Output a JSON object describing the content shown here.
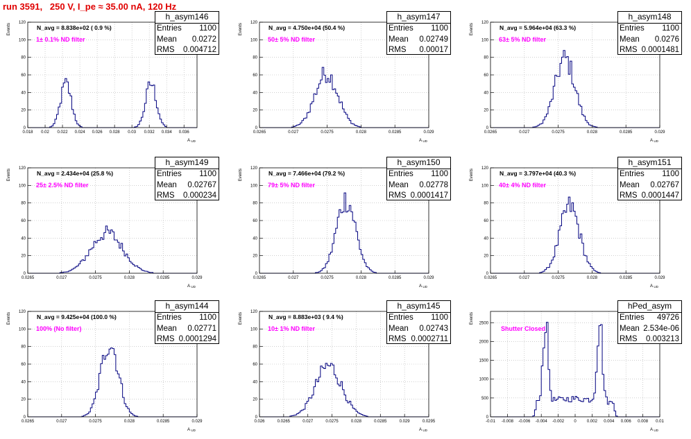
{
  "canvas_title": "run 3591,   250 V, I_pe ≈ 35.00 nA, 120 Hz",
  "colors": {
    "title": "#e00000",
    "histogram": "#00007f",
    "annotation": "#ff00ff",
    "grid": "#b0b0b0"
  },
  "chart_data": [
    {
      "type": "bar",
      "hist_name": "h_asym146",
      "navg": "N_avg = 8.838e+02 ( 0.9 %)",
      "filter": "1± 0.1% ND filter",
      "stats": {
        "entries_label": "Entries",
        "entries": "1100",
        "mean_label": "Mean",
        "mean": "0.0272",
        "rms_label": "RMS",
        "rms": "0.004712"
      },
      "ylabel": "Events",
      "xlabel": "A_UD",
      "xlim": [
        0.018,
        0.0375
      ],
      "ylim": [
        0,
        120
      ],
      "xticks": [
        0.018,
        0.02,
        0.022,
        0.024,
        0.026,
        0.028,
        0.03,
        0.032,
        0.034,
        0.036
      ],
      "xtick_labels": [
        "0.018",
        "0.02",
        "0.022",
        "0.024",
        "0.026",
        "0.028",
        "0.03",
        "0.032",
        "0.034",
        "0.036"
      ],
      "yticks": [
        0,
        20,
        40,
        60,
        80,
        100,
        120
      ],
      "ytick_labels": [
        "0",
        "20",
        "40",
        "60",
        "80",
        "100",
        "120"
      ],
      "peaks": [
        {
          "center": 0.0224,
          "sigma": 0.00062,
          "height": 50
        },
        {
          "center": 0.0322,
          "sigma": 0.00062,
          "height": 50
        }
      ]
    },
    {
      "type": "bar",
      "hist_name": "h_asym147",
      "navg": "N_avg = 4.750e+04 (50.4 %)",
      "filter": "50± 5% ND filter",
      "stats": {
        "entries_label": "Entries",
        "entries": "1100",
        "mean_label": "Mean",
        "mean": "0.02749",
        "rms_label": "RMS",
        "rms": "0.00017"
      },
      "ylabel": "Events",
      "xlabel": "A_UD",
      "xlim": [
        0.0265,
        0.029
      ],
      "ylim": [
        0,
        120
      ],
      "xticks": [
        0.0265,
        0.027,
        0.0275,
        0.028,
        0.0285,
        0.029
      ],
      "xtick_labels": [
        "0.0265",
        "0.027",
        "0.0275",
        "0.028",
        "0.0285",
        "0.029"
      ],
      "yticks": [
        0,
        20,
        40,
        60,
        80,
        100,
        120
      ],
      "ytick_labels": [
        "0",
        "20",
        "40",
        "60",
        "80",
        "100",
        "120"
      ],
      "peaks": [
        {
          "center": 0.02749,
          "sigma": 0.00017,
          "height": 62
        }
      ]
    },
    {
      "type": "bar",
      "hist_name": "h_asym148",
      "navg": "N_avg = 5.964e+04 (63.3 %)",
      "filter": "63± 5% ND filter",
      "stats": {
        "entries_label": "Entries",
        "entries": "1100",
        "mean_label": "Mean",
        "mean": "0.0276",
        "rms_label": "RMS",
        "rms": "0.0001481"
      },
      "ylabel": "Events",
      "xlabel": "A_UD",
      "xlim": [
        0.0265,
        0.029
      ],
      "ylim": [
        0,
        120
      ],
      "xticks": [
        0.0265,
        0.027,
        0.0275,
        0.028,
        0.0285,
        0.029
      ],
      "xtick_labels": [
        "0.0265",
        "0.027",
        "0.0275",
        "0.028",
        "0.0285",
        "0.029"
      ],
      "yticks": [
        0,
        20,
        40,
        60,
        80,
        100,
        120
      ],
      "ytick_labels": [
        "0",
        "20",
        "40",
        "60",
        "80",
        "100",
        "120"
      ],
      "peaks": [
        {
          "center": 0.0276,
          "sigma": 0.000148,
          "height": 78
        }
      ]
    },
    {
      "type": "bar",
      "hist_name": "h_asym149",
      "navg": "N_avg = 2.434e+04 (25.8 %)",
      "filter": "25± 2.5% ND filter",
      "stats": {
        "entries_label": "Entries",
        "entries": "1100",
        "mean_label": "Mean",
        "mean": "0.02767",
        "rms_label": "RMS",
        "rms": "0.000234"
      },
      "ylabel": "Events",
      "xlabel": "A_UD",
      "xlim": [
        0.0265,
        0.029
      ],
      "ylim": [
        0,
        120
      ],
      "xticks": [
        0.0265,
        0.027,
        0.0275,
        0.028,
        0.0285,
        0.029
      ],
      "xtick_labels": [
        "0.0265",
        "0.027",
        "0.0275",
        "0.028",
        "0.0285",
        "0.029"
      ],
      "yticks": [
        0,
        20,
        40,
        60,
        80,
        100,
        120
      ],
      "ytick_labels": [
        "0",
        "20",
        "40",
        "60",
        "80",
        "100",
        "120"
      ],
      "peaks": [
        {
          "center": 0.02767,
          "sigma": 0.000234,
          "height": 46
        }
      ]
    },
    {
      "type": "bar",
      "hist_name": "h_asym150",
      "navg": "N_avg = 7.466e+04 (79.2 %)",
      "filter": "79± 5% ND filter",
      "stats": {
        "entries_label": "Entries",
        "entries": "1100",
        "mean_label": "Mean",
        "mean": "0.02778",
        "rms_label": "RMS",
        "rms": "0.0001417"
      },
      "ylabel": "Events",
      "xlabel": "A_UD",
      "xlim": [
        0.0265,
        0.029
      ],
      "ylim": [
        0,
        120
      ],
      "xticks": [
        0.0265,
        0.027,
        0.0275,
        0.028,
        0.0285,
        0.029
      ],
      "xtick_labels": [
        "0.0265",
        "0.027",
        "0.0275",
        "0.028",
        "0.0285",
        "0.029"
      ],
      "yticks": [
        0,
        20,
        40,
        60,
        80,
        100,
        120
      ],
      "ytick_labels": [
        "0",
        "20",
        "40",
        "60",
        "80",
        "100",
        "120"
      ],
      "peaks": [
        {
          "center": 0.02778,
          "sigma": 0.000142,
          "height": 84
        }
      ]
    },
    {
      "type": "bar",
      "hist_name": "h_asym151",
      "navg": "N_avg = 3.797e+04 (40.3 %)",
      "filter": "40± 4% ND filter",
      "stats": {
        "entries_label": "Entries",
        "entries": "1100",
        "mean_label": "Mean",
        "mean": "0.02767",
        "rms_label": "RMS",
        "rms": "0.0001447"
      },
      "ylabel": "Events",
      "xlabel": "A_UD",
      "xlim": [
        0.0265,
        0.029
      ],
      "ylim": [
        0,
        120
      ],
      "xticks": [
        0.0265,
        0.027,
        0.0275,
        0.028,
        0.0285,
        0.029
      ],
      "xtick_labels": [
        "0.0265",
        "0.027",
        "0.0275",
        "0.028",
        "0.0285",
        "0.029"
      ],
      "yticks": [
        0,
        20,
        40,
        60,
        80,
        100,
        120
      ],
      "ytick_labels": [
        "0",
        "20",
        "40",
        "60",
        "80",
        "100",
        "120"
      ],
      "peaks": [
        {
          "center": 0.02767,
          "sigma": 0.000145,
          "height": 76
        }
      ]
    },
    {
      "type": "bar",
      "hist_name": "h_asym144",
      "navg": "N_avg = 9.425e+04 (100.0 %)",
      "filter": "100% (No filter)",
      "stats": {
        "entries_label": "Entries",
        "entries": "1100",
        "mean_label": "Mean",
        "mean": "0.02771",
        "rms_label": "RMS",
        "rms": "0.0001294"
      },
      "ylabel": "Events",
      "xlabel": "A_UD",
      "xlim": [
        0.0265,
        0.029
      ],
      "ylim": [
        0,
        120
      ],
      "xticks": [
        0.0265,
        0.027,
        0.0275,
        0.028,
        0.0285,
        0.029
      ],
      "xtick_labels": [
        "0.0265",
        "0.027",
        "0.0275",
        "0.028",
        "0.0285",
        "0.029"
      ],
      "yticks": [
        0,
        20,
        40,
        60,
        80,
        100,
        120
      ],
      "ytick_labels": [
        "0",
        "20",
        "40",
        "60",
        "80",
        "100",
        "120"
      ],
      "peaks": [
        {
          "center": 0.02771,
          "sigma": 0.000129,
          "height": 85
        }
      ]
    },
    {
      "type": "bar",
      "hist_name": "h_asym145",
      "navg": "N_avg = 8.883e+03 ( 9.4 %)",
      "filter": "10± 1% ND filter",
      "stats": {
        "entries_label": "Entries",
        "entries": "1100",
        "mean_label": "Mean",
        "mean": "0.02743",
        "rms_label": "RMS",
        "rms": "0.0002711"
      },
      "ylabel": "Events",
      "xlabel": "A_UD",
      "xlim": [
        0.026,
        0.0295
      ],
      "ylim": [
        0,
        120
      ],
      "xticks": [
        0.026,
        0.0265,
        0.027,
        0.0275,
        0.028,
        0.0285,
        0.029,
        0.0295
      ],
      "xtick_labels": [
        "0.026",
        "0.0265",
        "0.027",
        "0.0275",
        "0.028",
        "0.0285",
        "0.029",
        "0.0295"
      ],
      "yticks": [
        0,
        20,
        40,
        60,
        80,
        100,
        120
      ],
      "ytick_labels": [
        "0",
        "20",
        "40",
        "60",
        "80",
        "100",
        "120"
      ],
      "peaks": [
        {
          "center": 0.02743,
          "sigma": 0.00027,
          "height": 58
        }
      ]
    },
    {
      "type": "bar",
      "hist_name": "hPed_asym",
      "navg": "",
      "filter": "Shutter Closed",
      "stats": {
        "entries_label": "Entries",
        "entries": "49726",
        "mean_label": "Mean",
        "mean": "2.534e-06",
        "rms_label": "RMS",
        "rms": "0.003213"
      },
      "ylabel": "Events",
      "xlabel": "A_UD",
      "xlim": [
        -0.01,
        0.01
      ],
      "ylim": [
        0,
        2800
      ],
      "xticks": [
        -0.01,
        -0.008,
        -0.006,
        -0.004,
        -0.002,
        0,
        0.002,
        0.004,
        0.006,
        0.008,
        0.01
      ],
      "xtick_labels": [
        "-0.01",
        "-0.008",
        "-0.006",
        "-0.004",
        "-0.002",
        "0",
        "0.002",
        "0.004",
        "0.006",
        "0.008",
        "0.01"
      ],
      "yticks": [
        0,
        500,
        1000,
        1500,
        2000,
        2500
      ],
      "ytick_labels": [
        "0",
        "500",
        "1000",
        "1500",
        "2000",
        "2500"
      ],
      "peaks": [
        {
          "center": -0.0035,
          "sigma": 0.0003,
          "height": 2150
        },
        {
          "center": 0.0029,
          "sigma": 0.0003,
          "height": 2200
        }
      ]
    }
  ]
}
